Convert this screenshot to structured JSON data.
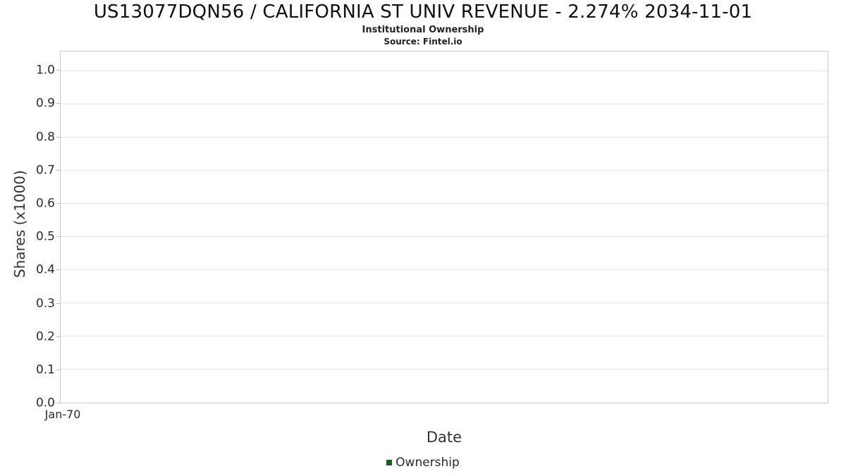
{
  "header": {
    "title": "US13077DQN56 / CALIFORNIA ST UNIV REVENUE - 2.274% 2034-11-01",
    "subtitle": "Institutional Ownership",
    "source": "Source: Fintel.io"
  },
  "chart_data": {
    "type": "line",
    "title": "US13077DQN56 / CALIFORNIA ST UNIV REVENUE - 2.274% 2034-11-01",
    "subtitle": "Institutional Ownership",
    "source": "Source: Fintel.io",
    "xlabel": "Date",
    "ylabel": "Shares (x1000)",
    "x": [],
    "series": [
      {
        "name": "Ownership",
        "values": [],
        "color": "#1b5e20"
      }
    ],
    "ylim": [
      0,
      1.06
    ],
    "yticks": [
      "0.0",
      "0.1",
      "0.2",
      "0.3",
      "0.4",
      "0.5",
      "0.6",
      "0.7",
      "0.8",
      "0.9",
      "1.0"
    ],
    "xticks": [
      "Jan-70"
    ],
    "grid": true,
    "legend_position": "bottom",
    "legend": [
      {
        "label": "Ownership",
        "color": "#1b5e20"
      }
    ]
  }
}
